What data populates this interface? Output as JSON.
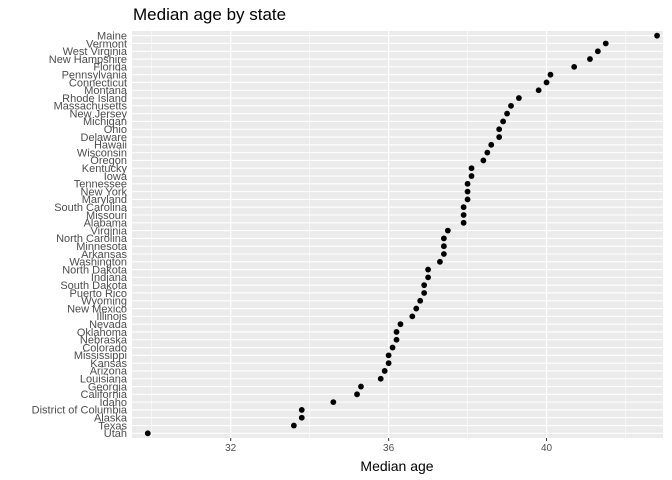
{
  "chart_data": {
    "type": "scatter",
    "title": "Median age by state",
    "xlabel": "Median age",
    "ylabel": "",
    "xlim": [
      29.5,
      42.95
    ],
    "xticks": [
      32,
      36,
      40
    ],
    "grid": true,
    "legend": "none",
    "colors": {
      "panel": "#ebebeb",
      "grid": "#ffffff",
      "point": "#000000"
    },
    "points": [
      {
        "state": "Maine",
        "age": 42.8
      },
      {
        "state": "Vermont",
        "age": 41.5
      },
      {
        "state": "West Virginia",
        "age": 41.3
      },
      {
        "state": "New Hampshire",
        "age": 41.1
      },
      {
        "state": "Florida",
        "age": 40.7
      },
      {
        "state": "Pennsylvania",
        "age": 40.1
      },
      {
        "state": "Connecticut",
        "age": 40.0
      },
      {
        "state": "Montana",
        "age": 39.8
      },
      {
        "state": "Rhode Island",
        "age": 39.3
      },
      {
        "state": "Massachusetts",
        "age": 39.1
      },
      {
        "state": "New Jersey",
        "age": 39.0
      },
      {
        "state": "Michigan",
        "age": 38.9
      },
      {
        "state": "Ohio",
        "age": 38.8
      },
      {
        "state": "Delaware",
        "age": 38.8
      },
      {
        "state": "Hawaii",
        "age": 38.6
      },
      {
        "state": "Wisconsin",
        "age": 38.5
      },
      {
        "state": "Oregon",
        "age": 38.4
      },
      {
        "state": "Kentucky",
        "age": 38.1
      },
      {
        "state": "Iowa",
        "age": 38.1
      },
      {
        "state": "Tennessee",
        "age": 38.0
      },
      {
        "state": "New York",
        "age": 38.0
      },
      {
        "state": "Maryland",
        "age": 38.0
      },
      {
        "state": "South Carolina",
        "age": 37.9
      },
      {
        "state": "Missouri",
        "age": 37.9
      },
      {
        "state": "Alabama",
        "age": 37.9
      },
      {
        "state": "Virginia",
        "age": 37.5
      },
      {
        "state": "North Carolina",
        "age": 37.4
      },
      {
        "state": "Minnesota",
        "age": 37.4
      },
      {
        "state": "Arkansas",
        "age": 37.4
      },
      {
        "state": "Washington",
        "age": 37.3
      },
      {
        "state": "North Dakota",
        "age": 37.0
      },
      {
        "state": "Indiana",
        "age": 37.0
      },
      {
        "state": "South Dakota",
        "age": 36.9
      },
      {
        "state": "Puerto Rico",
        "age": 36.9
      },
      {
        "state": "Wyoming",
        "age": 36.8
      },
      {
        "state": "New Mexico",
        "age": 36.7
      },
      {
        "state": "Illinois",
        "age": 36.6
      },
      {
        "state": "Nevada",
        "age": 36.3
      },
      {
        "state": "Oklahoma",
        "age": 36.2
      },
      {
        "state": "Nebraska",
        "age": 36.2
      },
      {
        "state": "Colorado",
        "age": 36.1
      },
      {
        "state": "Mississippi",
        "age": 36.0
      },
      {
        "state": "Kansas",
        "age": 36.0
      },
      {
        "state": "Arizona",
        "age": 35.9
      },
      {
        "state": "Louisiana",
        "age": 35.8
      },
      {
        "state": "Georgia",
        "age": 35.3
      },
      {
        "state": "California",
        "age": 35.2
      },
      {
        "state": "Idaho",
        "age": 34.6
      },
      {
        "state": "District of Columbia",
        "age": 33.8
      },
      {
        "state": "Alaska",
        "age": 33.8
      },
      {
        "state": "Texas",
        "age": 33.6
      },
      {
        "state": "Utah",
        "age": 29.9
      }
    ]
  }
}
